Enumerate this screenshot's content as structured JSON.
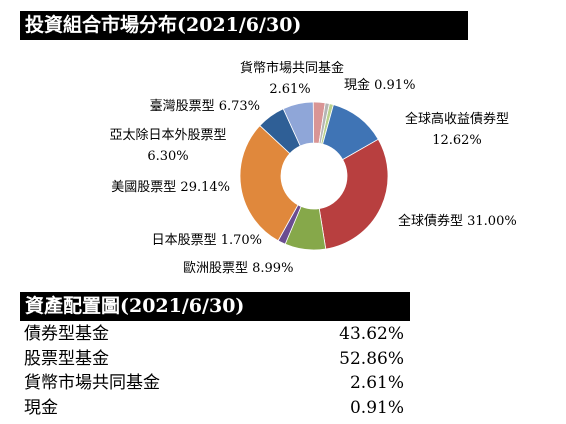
{
  "section1": {
    "title": "投資組合市場分布(2021/6/30)"
  },
  "section2": {
    "title": "資產配置圖(2021/6/30)"
  },
  "chart_data": {
    "type": "pie",
    "title": "投資組合市場分布(2021/6/30)",
    "slices": [
      {
        "name": "現金",
        "value": 0.91,
        "label": "0.91%",
        "color": "#b5b5b5"
      },
      {
        "name": "全球高收益債券型",
        "value": 12.62,
        "label": "12.62%",
        "color": "#3f74b5"
      },
      {
        "name": "全球債券型",
        "value": 31.0,
        "label": "31.00%",
        "color": "#b83f3f"
      },
      {
        "name": "歐洲股票型",
        "value": 8.99,
        "label": "8.99%",
        "color": "#86a84a"
      },
      {
        "name": "日本股票型",
        "value": 1.7,
        "label": "1.70%",
        "color": "#6b4d91"
      },
      {
        "name": "美國股票型",
        "value": 29.14,
        "label": "29.14%",
        "color": "#e0883c"
      },
      {
        "name": "亞太除日本外股票型",
        "value": 6.3,
        "label": "6.30%",
        "color": "#2f5f96"
      },
      {
        "name": "臺灣股票型",
        "value": 6.73,
        "label": "6.73%",
        "color": "#8fa6d8"
      },
      {
        "name": "貨幣市場共同基金",
        "value": 2.61,
        "label": "2.61%",
        "color": "#d99595"
      },
      {
        "name": "現金",
        "value": 0.91,
        "label": "0.91%",
        "color": "#b9d08c"
      }
    ]
  },
  "labels": {
    "money_market_name": "貨幣市場共同基金",
    "money_market_value": "2.61%",
    "cash": "現金 0.91%",
    "global_hy_name": "全球高收益債券型",
    "global_hy_value": "12.62%",
    "taiwan": "臺灣股票型 6.73%",
    "apac_name": "亞太除日本外股票型",
    "apac_value": "6.30%",
    "us": "美國股票型 29.14%",
    "global_bond": "全球債券型 31.00%",
    "japan": "日本股票型 1.70%",
    "europe": "歐洲股票型 8.99%"
  },
  "allocation": [
    {
      "name": "債券型基金",
      "value": "43.62%"
    },
    {
      "name": "股票型基金",
      "value": "52.86%"
    },
    {
      "name": "貨幣市場共同基金",
      "value": "2.61%"
    },
    {
      "name": "現金",
      "value": "0.91%"
    }
  ]
}
